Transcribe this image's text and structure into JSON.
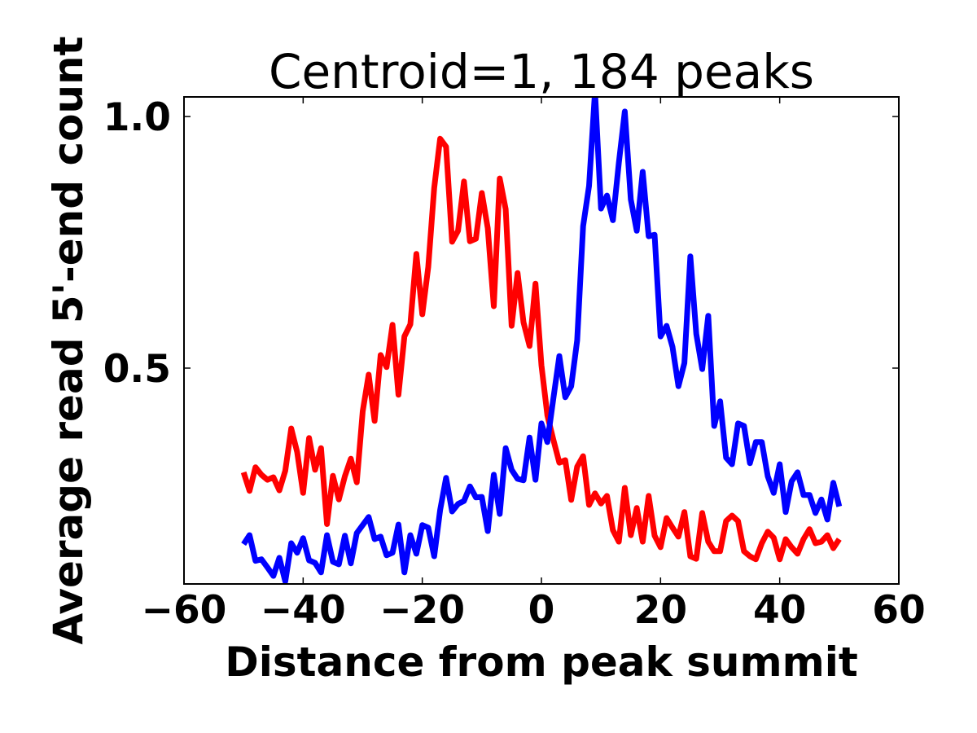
{
  "chart_data": {
    "type": "line",
    "title": "Centroid=1, 184 peaks",
    "xlabel": "Distance from peak summit",
    "ylabel": "Average read 5'-end count",
    "xlim": [
      -60,
      60
    ],
    "ylim": [
      0.071,
      1.039
    ],
    "xticks": [
      -60,
      -40,
      -20,
      0,
      20,
      40,
      60
    ],
    "xtick_labels": [
      "−60",
      "−40",
      "−20",
      "0",
      "20",
      "40",
      "60"
    ],
    "yticks": [
      0.5,
      1.0
    ],
    "ytick_labels": [
      "0.5",
      "1.0"
    ],
    "grid": false,
    "x_start": -50,
    "x_step": 1,
    "series": [
      {
        "color": "#ff0000",
        "values": [
          0.293,
          0.256,
          0.303,
          0.288,
          0.278,
          0.283,
          0.257,
          0.296,
          0.38,
          0.333,
          0.252,
          0.361,
          0.298,
          0.341,
          0.19,
          0.286,
          0.239,
          0.285,
          0.32,
          0.273,
          0.414,
          0.487,
          0.395,
          0.526,
          0.502,
          0.586,
          0.447,
          0.563,
          0.587,
          0.727,
          0.607,
          0.701,
          0.858,
          0.956,
          0.94,
          0.751,
          0.773,
          0.871,
          0.752,
          0.757,
          0.848,
          0.778,
          0.623,
          0.877,
          0.816,
          0.584,
          0.689,
          0.591,
          0.544,
          0.668,
          0.506,
          0.406,
          0.358,
          0.312,
          0.317,
          0.238,
          0.304,
          0.325,
          0.228,
          0.251,
          0.231,
          0.246,
          0.178,
          0.155,
          0.262,
          0.168,
          0.222,
          0.155,
          0.246,
          0.167,
          0.144,
          0.202,
          0.183,
          0.165,
          0.214,
          0.126,
          0.121,
          0.212,
          0.155,
          0.136,
          0.136,
          0.196,
          0.207,
          0.196,
          0.136,
          0.126,
          0.12,
          0.152,
          0.175,
          0.163,
          0.12,
          0.16,
          0.144,
          0.131,
          0.16,
          0.18,
          0.152,
          0.155,
          0.168,
          0.142,
          0.16
        ]
      },
      {
        "color": "#0000ff",
        "values": [
          0.15,
          0.168,
          0.117,
          0.12,
          0.104,
          0.087,
          0.123,
          0.076,
          0.152,
          0.133,
          0.162,
          0.118,
          0.113,
          0.094,
          0.168,
          0.115,
          0.11,
          0.167,
          0.112,
          0.172,
          0.188,
          0.204,
          0.16,
          0.165,
          0.128,
          0.133,
          0.189,
          0.094,
          0.168,
          0.131,
          0.188,
          0.183,
          0.126,
          0.218,
          0.282,
          0.215,
          0.23,
          0.236,
          0.265,
          0.243,
          0.244,
          0.176,
          0.288,
          0.21,
          0.341,
          0.298,
          0.28,
          0.277,
          0.362,
          0.278,
          0.39,
          0.353,
          0.439,
          0.524,
          0.442,
          0.464,
          0.555,
          0.782,
          0.862,
          1.05,
          0.817,
          0.843,
          0.794,
          0.908,
          1.01,
          0.835,
          0.773,
          0.89,
          0.762,
          0.765,
          0.563,
          0.584,
          0.542,
          0.464,
          0.51,
          0.722,
          0.568,
          0.498,
          0.604,
          0.385,
          0.434,
          0.322,
          0.309,
          0.39,
          0.385,
          0.311,
          0.353,
          0.353,
          0.285,
          0.252,
          0.309,
          0.214,
          0.275,
          0.293,
          0.248,
          0.248,
          0.212,
          0.239,
          0.199,
          0.272,
          0.225
        ]
      }
    ]
  }
}
